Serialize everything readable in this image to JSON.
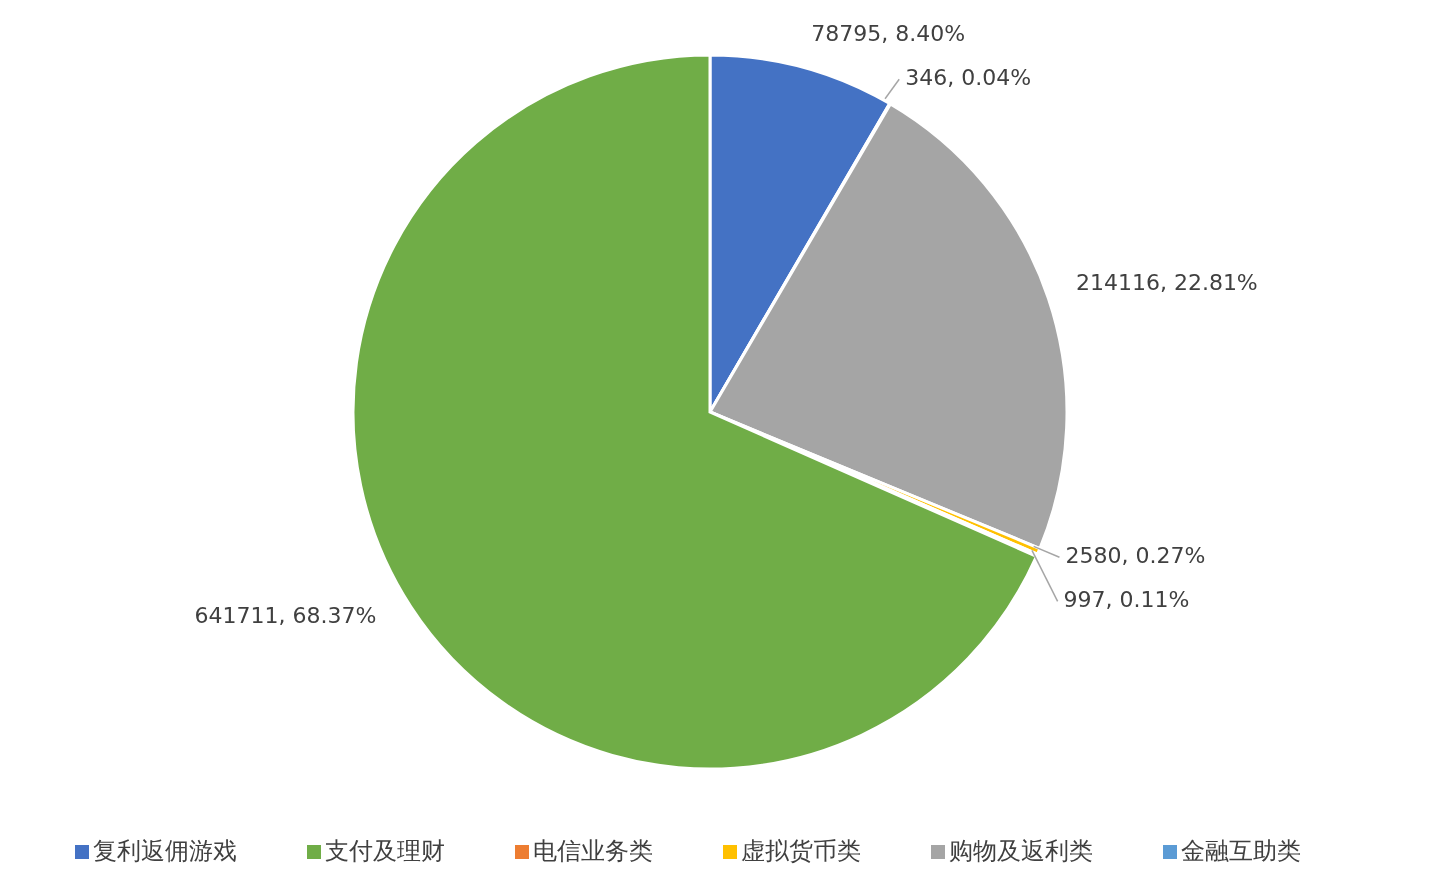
{
  "chart_data": {
    "type": "pie",
    "categories": [
      "复利返佣游戏",
      "电信业务类",
      "购物及返利类",
      "虚拟货币类",
      "金融互助类",
      "支付及理财"
    ],
    "values": [
      78795,
      346,
      214116,
      2580,
      997,
      641711
    ],
    "colors": [
      "#4472c4",
      "#ed7d31",
      "#a5a5a5",
      "#ffc000",
      "#5b9bd5",
      "#70ad47"
    ],
    "value_labels": [
      "78795, 8.40%",
      "346, 0.04%",
      "214116, 22.81%",
      "2580, 0.27%",
      "997, 0.11%",
      "641711, 68.37%"
    ],
    "legend": "bottom"
  }
}
